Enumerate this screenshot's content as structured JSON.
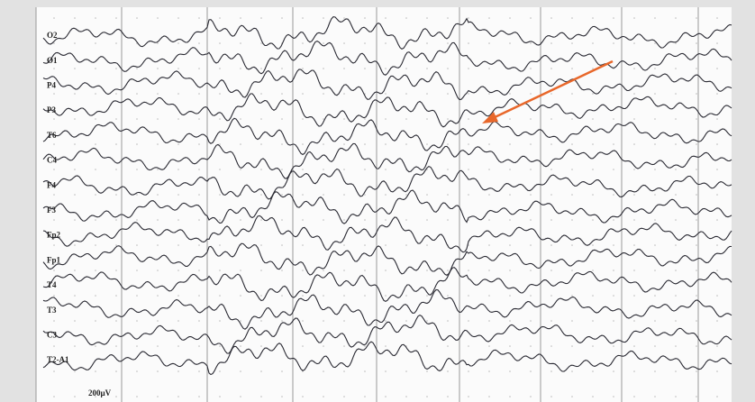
{
  "channels": [
    "O2",
    "O1",
    "P4",
    "P3",
    "T6",
    "C4",
    "F4",
    "F3",
    "Fp2",
    "Fp1",
    "T4",
    "T3",
    "C3",
    "T2-A1"
  ],
  "scale_label": "200µV"
}
